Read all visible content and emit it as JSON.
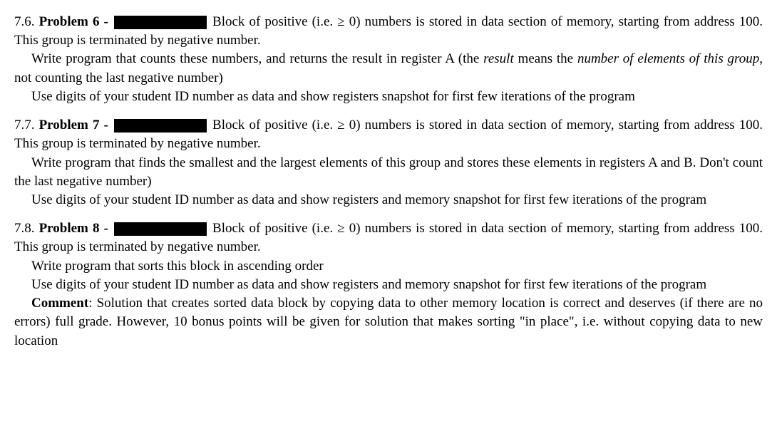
{
  "problems": [
    {
      "num": "7.6.",
      "title": "Problem 6 -",
      "intro": "Block of positive (i.e. ≥ 0) numbers is stored in data section of memory, starting from address 100. This group is terminated by negative number.",
      "task_pre": "Write program that counts these numbers, and returns the result in register A (the ",
      "task_ital1": "result",
      "task_mid": " means the ",
      "task_ital2": "number of elements of this group",
      "task_post": ", not counting the last negative number)",
      "usage": "Use digits of your student ID number as data and show registers snapshot for first few iterations of the program"
    },
    {
      "num": "7.7.",
      "title": "Problem 7 -",
      "intro": "Block of positive (i.e. ≥ 0) numbers is stored in data section of memory, starting from address 100. This group is terminated by negative number.",
      "task": "Write program that finds the smallest and the largest elements of this group and stores these elements in registers A and B. Don't count the last negative number)",
      "usage": "Use digits of your student ID number as data and show registers and memory snapshot for first few iterations of the program"
    },
    {
      "num": "7.8.",
      "title": "Problem 8 -",
      "intro": "Block of positive (i.e. ≥ 0) numbers is stored in data section of memory, starting from address 100. This group is terminated by negative number.",
      "task": "Write program that sorts this block in ascending order",
      "usage": "Use digits of your student ID number as data and show registers and memory snapshot for first few iterations of the program",
      "comment_label": "Comment",
      "comment_text": ": Solution that creates sorted data block by copying data to other memory location is correct and deserves (if there are no errors) full grade. However, 10 bonus points will be given for solution that makes sorting \"in place\", i.e. without copying data to new location"
    }
  ]
}
